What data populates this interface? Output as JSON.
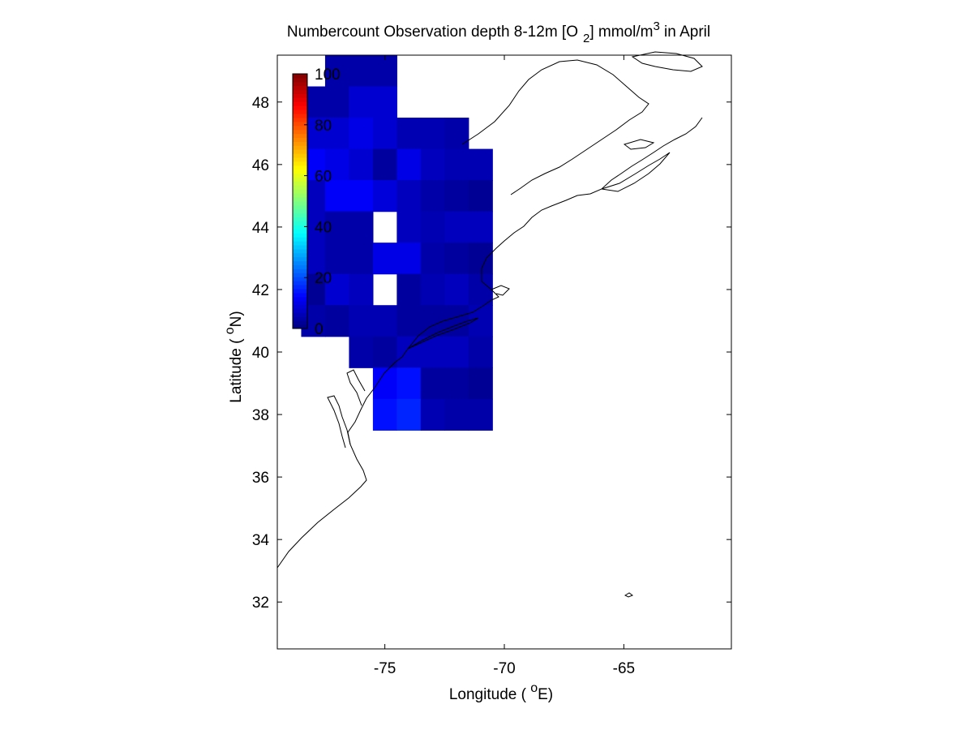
{
  "chart_data": {
    "type": "heatmap",
    "title": {
      "prefix": "Numbercount Observation depth 8-12m [O",
      "sub": "2",
      "middle": "] mmol/m",
      "sup": "3",
      "suffix": " in April"
    },
    "xlabel": {
      "prefix": "Longitude ( ",
      "sup": "o",
      "suffix": "E)"
    },
    "ylabel": {
      "prefix": "Latitude ( ",
      "sup": "o",
      "suffix": "N)"
    },
    "xlim": [
      -79.5,
      -60.5
    ],
    "ylim": [
      30.5,
      49.5
    ],
    "x_ticks": [
      -75,
      -70,
      -65
    ],
    "y_ticks": [
      32,
      34,
      36,
      38,
      40,
      42,
      44,
      46,
      48
    ],
    "grid": false,
    "colorbar": {
      "min": 0,
      "max": 100,
      "ticks": [
        0,
        20,
        40,
        60,
        80,
        100
      ],
      "colormap": "jet",
      "placement": "upper-left inside axes"
    },
    "cells": [
      [
        -77,
        49,
        4
      ],
      [
        -76,
        49,
        4
      ],
      [
        -75,
        49,
        4
      ],
      [
        -78,
        48,
        4
      ],
      [
        -77,
        48,
        4
      ],
      [
        -76,
        48,
        8
      ],
      [
        -75,
        48,
        8
      ],
      [
        -79,
        47,
        null
      ],
      [
        -78,
        47,
        8
      ],
      [
        -77,
        47,
        8
      ],
      [
        -76,
        47,
        10
      ],
      [
        -75,
        47,
        8
      ],
      [
        -74,
        47,
        5
      ],
      [
        -73,
        47,
        5
      ],
      [
        -72,
        47,
        4
      ],
      [
        -79,
        46,
        null
      ],
      [
        -78,
        46,
        12
      ],
      [
        -77,
        46,
        10
      ],
      [
        -76,
        46,
        8
      ],
      [
        -75,
        46,
        3
      ],
      [
        -74,
        46,
        10
      ],
      [
        -73,
        46,
        6
      ],
      [
        -72,
        46,
        5
      ],
      [
        -71,
        46,
        5
      ],
      [
        -79,
        45,
        null
      ],
      [
        -78,
        45,
        6
      ],
      [
        -77,
        45,
        12
      ],
      [
        -76,
        45,
        12
      ],
      [
        -75,
        45,
        9
      ],
      [
        -74,
        45,
        6
      ],
      [
        -73,
        45,
        4
      ],
      [
        -72,
        45,
        3
      ],
      [
        -71,
        45,
        2
      ],
      [
        -79,
        44,
        null
      ],
      [
        -78,
        44,
        6
      ],
      [
        -77,
        44,
        4
      ],
      [
        -76,
        44,
        4
      ],
      [
        -75,
        44,
        null
      ],
      [
        -74,
        44,
        6
      ],
      [
        -73,
        44,
        5
      ],
      [
        -72,
        44,
        6
      ],
      [
        -71,
        44,
        6
      ],
      [
        -79,
        43,
        null
      ],
      [
        -78,
        43,
        6
      ],
      [
        -77,
        43,
        4
      ],
      [
        -76,
        43,
        4
      ],
      [
        -75,
        43,
        10
      ],
      [
        -74,
        43,
        10
      ],
      [
        -73,
        43,
        4
      ],
      [
        -72,
        43,
        3
      ],
      [
        -71,
        43,
        2
      ],
      [
        -79,
        42,
        null
      ],
      [
        -78,
        42,
        2
      ],
      [
        -77,
        42,
        8
      ],
      [
        -76,
        42,
        6
      ],
      [
        -75,
        42,
        null
      ],
      [
        -74,
        42,
        3
      ],
      [
        -73,
        42,
        5
      ],
      [
        -72,
        42,
        6
      ],
      [
        -71,
        42,
        4
      ],
      [
        -79,
        41,
        null
      ],
      [
        -78,
        41,
        4
      ],
      [
        -77,
        41,
        3
      ],
      [
        -76,
        41,
        5
      ],
      [
        -75,
        41,
        5
      ],
      [
        -74,
        41,
        3
      ],
      [
        -73,
        41,
        3
      ],
      [
        -72,
        41,
        3
      ],
      [
        -71,
        41,
        5
      ],
      [
        -79,
        40,
        null
      ],
      [
        -78,
        40,
        null
      ],
      [
        -77,
        40,
        null
      ],
      [
        -76,
        40,
        4
      ],
      [
        -75,
        40,
        3
      ],
      [
        -74,
        40,
        6
      ],
      [
        -73,
        40,
        6
      ],
      [
        -72,
        40,
        6
      ],
      [
        -71,
        40,
        4
      ],
      [
        -79,
        39,
        null
      ],
      [
        -78,
        39,
        null
      ],
      [
        -77,
        39,
        null
      ],
      [
        -76,
        39,
        null
      ],
      [
        -75,
        39,
        12
      ],
      [
        -74,
        39,
        14
      ],
      [
        -73,
        39,
        3
      ],
      [
        -72,
        39,
        3
      ],
      [
        -71,
        39,
        2
      ],
      [
        -79,
        38,
        null
      ],
      [
        -78,
        38,
        null
      ],
      [
        -77,
        38,
        null
      ],
      [
        -76,
        38,
        null
      ],
      [
        -75,
        38,
        14
      ],
      [
        -74,
        38,
        16
      ],
      [
        -73,
        38,
        5
      ],
      [
        -72,
        38,
        4
      ],
      [
        -71,
        38,
        4
      ],
      [
        -79,
        37,
        null
      ],
      [
        -78,
        37,
        null
      ],
      [
        -77,
        37,
        null
      ],
      [
        -76,
        37,
        null
      ],
      [
        -75,
        37,
        null
      ],
      [
        -74,
        37,
        null
      ],
      [
        -73,
        37,
        null
      ],
      [
        -72,
        37,
        null
      ],
      [
        -71,
        37,
        null
      ],
      [
        -79,
        36,
        null
      ],
      [
        -78,
        36,
        null
      ],
      [
        -77,
        36,
        null
      ],
      [
        -76,
        36,
        null
      ],
      [
        -75,
        36,
        null
      ],
      [
        -74,
        36,
        null
      ],
      [
        -73,
        36,
        null
      ],
      [
        -72,
        36,
        null
      ],
      [
        -71,
        36,
        null
      ],
      [
        -79,
        35,
        null
      ],
      [
        -78,
        35,
        null
      ],
      [
        -77,
        35,
        null
      ],
      [
        -76,
        35,
        null
      ],
      [
        -75,
        35,
        null
      ],
      [
        -74,
        35,
        null
      ],
      [
        -73,
        35,
        null
      ],
      [
        -72,
        35,
        null
      ],
      [
        -71,
        35,
        null
      ],
      [
        -79,
        34,
        null
      ],
      [
        -78,
        34,
        null
      ],
      [
        -77,
        34,
        null
      ],
      [
        -76,
        34,
        null
      ],
      [
        -75,
        34,
        null
      ],
      [
        -74,
        34,
        null
      ],
      [
        -73,
        34,
        null
      ],
      [
        -72,
        34,
        null
      ],
      [
        -71,
        34,
        null
      ],
      [
        -79,
        33,
        null
      ],
      [
        -78,
        33,
        null
      ],
      [
        -77,
        33,
        null
      ],
      [
        -76,
        33,
        null
      ],
      [
        -75,
        33,
        null
      ],
      [
        -74,
        33,
        null
      ],
      [
        -73,
        33,
        null
      ],
      [
        -72,
        33,
        null
      ],
      [
        -71,
        33,
        null
      ],
      [
        -79,
        32,
        null
      ],
      [
        -78,
        32,
        null
      ],
      [
        -77,
        32,
        null
      ],
      [
        -76,
        32,
        null
      ],
      [
        -75,
        32,
        null
      ],
      [
        -74,
        32,
        null
      ],
      [
        -73,
        32,
        null
      ],
      [
        -72,
        32,
        null
      ],
      [
        -71,
        32,
        null
      ],
      [
        -79,
        31,
        null
      ],
      [
        -78,
        31,
        null
      ],
      [
        -77,
        31,
        null
      ],
      [
        -76,
        31,
        null
      ],
      [
        -75,
        31,
        null
      ],
      [
        -74,
        31,
        null
      ],
      [
        -73,
        31,
        null
      ],
      [
        -72,
        31,
        null
      ],
      [
        -71,
        31,
        null
      ],
      [
        -70,
        49,
        null
      ],
      [
        -69,
        49,
        null
      ],
      [
        -68,
        49,
        null
      ],
      [
        -67,
        49,
        null
      ],
      [
        -66,
        49,
        null
      ],
      [
        -65,
        49,
        null
      ],
      [
        -64,
        49,
        null
      ],
      [
        -63,
        49,
        null
      ],
      [
        -62,
        49,
        null
      ],
      [
        -61,
        49,
        null
      ],
      [
        -70,
        48,
        null
      ],
      [
        -69,
        48,
        null
      ],
      [
        -68,
        48,
        null
      ],
      [
        -67,
        48,
        null
      ],
      [
        -66,
        48,
        null
      ],
      [
        -65,
        48,
        null
      ],
      [
        -64,
        48,
        null
      ],
      [
        -63,
        48,
        null
      ],
      [
        -62,
        48,
        null
      ],
      [
        -61,
        48,
        null
      ],
      [
        -70,
        47,
        null
      ],
      [
        -69,
        47,
        null
      ],
      [
        -68,
        47,
        null
      ],
      [
        -67,
        47,
        null
      ],
      [
        -66,
        47,
        null
      ],
      [
        -65,
        47,
        null
      ],
      [
        -64,
        47,
        null
      ],
      [
        -63,
        47,
        null
      ],
      [
        -62,
        47,
        null
      ],
      [
        -61,
        47,
        null
      ],
      [
        -70,
        46,
        null
      ],
      [
        -69,
        46,
        null
      ],
      [
        -68,
        46,
        null
      ],
      [
        -67,
        46,
        null
      ],
      [
        -66,
        46,
        null
      ],
      [
        -65,
        46,
        null
      ],
      [
        -64,
        46,
        null
      ],
      [
        -63,
        46,
        null
      ],
      [
        -62,
        46,
        null
      ],
      [
        -61,
        46,
        null
      ],
      [
        -70,
        45,
        null
      ],
      [
        -69,
        45,
        null
      ],
      [
        -68,
        45,
        null
      ],
      [
        -67,
        45,
        null
      ],
      [
        -66,
        45,
        null
      ],
      [
        -65,
        45,
        null
      ],
      [
        -64,
        45,
        null
      ],
      [
        -63,
        45,
        null
      ],
      [
        -62,
        45,
        null
      ],
      [
        -61,
        45,
        null
      ],
      [
        -70,
        44,
        null
      ],
      [
        -69,
        44,
        null
      ],
      [
        -68,
        44,
        null
      ],
      [
        -67,
        44,
        null
      ],
      [
        -66,
        44,
        null
      ],
      [
        -65,
        44,
        null
      ],
      [
        -64,
        44,
        null
      ],
      [
        -63,
        44,
        null
      ],
      [
        -62,
        44,
        null
      ],
      [
        -61,
        44,
        null
      ],
      [
        -70,
        43,
        null
      ],
      [
        -69,
        43,
        null
      ],
      [
        -68,
        43,
        null
      ],
      [
        -67,
        43,
        null
      ],
      [
        -66,
        43,
        null
      ],
      [
        -65,
        43,
        null
      ],
      [
        -64,
        43,
        null
      ],
      [
        -63,
        43,
        null
      ],
      [
        -62,
        43,
        null
      ],
      [
        -61,
        43,
        null
      ],
      [
        -70,
        42,
        null
      ],
      [
        -69,
        42,
        null
      ],
      [
        -68,
        42,
        null
      ],
      [
        -67,
        42,
        null
      ],
      [
        -66,
        42,
        null
      ],
      [
        -65,
        42,
        null
      ],
      [
        -64,
        42,
        null
      ],
      [
        -63,
        42,
        null
      ],
      [
        -62,
        42,
        null
      ],
      [
        -61,
        42,
        null
      ],
      [
        -70,
        41,
        null
      ],
      [
        -69,
        41,
        null
      ],
      [
        -68,
        41,
        null
      ],
      [
        -67,
        41,
        null
      ],
      [
        -66,
        41,
        null
      ],
      [
        -65,
        41,
        null
      ],
      [
        -64,
        41,
        null
      ],
      [
        -63,
        41,
        null
      ],
      [
        -62,
        41,
        null
      ],
      [
        -61,
        41,
        null
      ],
      [
        -70,
        40,
        null
      ],
      [
        -69,
        40,
        null
      ],
      [
        -68,
        40,
        null
      ],
      [
        -67,
        40,
        null
      ],
      [
        -66,
        40,
        null
      ],
      [
        -65,
        40,
        null
      ],
      [
        -64,
        40,
        null
      ],
      [
        -63,
        40,
        null
      ],
      [
        -62,
        40,
        null
      ],
      [
        -61,
        40,
        null
      ],
      [
        -70,
        39,
        null
      ],
      [
        -69,
        39,
        null
      ],
      [
        -68,
        39,
        null
      ],
      [
        -67,
        39,
        null
      ],
      [
        -66,
        39,
        null
      ],
      [
        -65,
        39,
        null
      ],
      [
        -64,
        39,
        null
      ],
      [
        -63,
        39,
        null
      ],
      [
        -62,
        39,
        null
      ],
      [
        -61,
        39,
        null
      ],
      [
        -70,
        38,
        null
      ],
      [
        -69,
        38,
        null
      ],
      [
        -68,
        38,
        null
      ],
      [
        -67,
        38,
        null
      ],
      [
        -66,
        38,
        null
      ],
      [
        -65,
        38,
        null
      ],
      [
        -64,
        38,
        null
      ],
      [
        -63,
        38,
        null
      ],
      [
        -62,
        38,
        null
      ],
      [
        -61,
        38,
        null
      ],
      [
        -70,
        37,
        null
      ],
      [
        -69,
        37,
        null
      ],
      [
        -68,
        37,
        null
      ],
      [
        -67,
        37,
        null
      ],
      [
        -66,
        37,
        null
      ],
      [
        -65,
        37,
        null
      ],
      [
        -64,
        37,
        null
      ],
      [
        -63,
        37,
        null
      ],
      [
        -62,
        37,
        null
      ],
      [
        -61,
        37,
        null
      ],
      [
        -70,
        36,
        null
      ],
      [
        -69,
        36,
        null
      ],
      [
        -68,
        36,
        null
      ],
      [
        -67,
        36,
        null
      ],
      [
        -66,
        36,
        null
      ],
      [
        -65,
        36,
        null
      ],
      [
        -64,
        36,
        null
      ],
      [
        -63,
        36,
        null
      ],
      [
        -62,
        36,
        null
      ],
      [
        -61,
        36,
        null
      ],
      [
        -70,
        35,
        null
      ],
      [
        -69,
        35,
        null
      ],
      [
        -68,
        35,
        null
      ],
      [
        -67,
        35,
        null
      ],
      [
        -66,
        35,
        null
      ],
      [
        -65,
        35,
        null
      ],
      [
        -64,
        35,
        null
      ],
      [
        -63,
        35,
        null
      ],
      [
        -62,
        35,
        null
      ],
      [
        -61,
        35,
        null
      ],
      [
        -70,
        34,
        null
      ],
      [
        -69,
        34,
        null
      ],
      [
        -68,
        34,
        null
      ],
      [
        -67,
        34,
        null
      ],
      [
        -66,
        34,
        null
      ],
      [
        -65,
        34,
        null
      ],
      [
        -64,
        34,
        null
      ],
      [
        -63,
        34,
        null
      ],
      [
        -62,
        34,
        null
      ],
      [
        -61,
        34,
        null
      ],
      [
        -70,
        33,
        null
      ],
      [
        -69,
        33,
        null
      ],
      [
        -68,
        33,
        null
      ],
      [
        -67,
        33,
        null
      ],
      [
        -66,
        33,
        null
      ],
      [
        -65,
        33,
        null
      ],
      [
        -64,
        33,
        null
      ],
      [
        -63,
        33,
        null
      ],
      [
        -62,
        33,
        null
      ],
      [
        -61,
        33,
        null
      ],
      [
        -70,
        32,
        null
      ],
      [
        -69,
        32,
        null
      ],
      [
        -68,
        32,
        null
      ],
      [
        -67,
        32,
        null
      ],
      [
        -66,
        32,
        null
      ],
      [
        -65,
        32,
        null
      ],
      [
        -64,
        32,
        null
      ],
      [
        -63,
        32,
        null
      ],
      [
        -62,
        32,
        null
      ],
      [
        -61,
        32,
        null
      ],
      [
        -70,
        31,
        null
      ],
      [
        -69,
        31,
        null
      ],
      [
        -68,
        31,
        null
      ],
      [
        -67,
        31,
        null
      ],
      [
        -66,
        31,
        null
      ],
      [
        -65,
        31,
        null
      ],
      [
        -64,
        31,
        null
      ],
      [
        -63,
        31,
        null
      ],
      [
        -62,
        31,
        null
      ],
      [
        -61,
        31,
        null
      ]
    ]
  }
}
